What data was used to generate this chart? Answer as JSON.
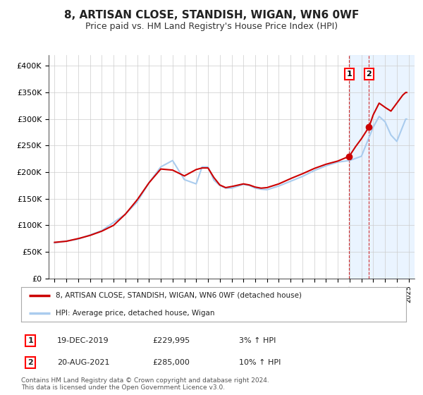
{
  "title": "8, ARTISAN CLOSE, STANDISH, WIGAN, WN6 0WF",
  "subtitle": "Price paid vs. HM Land Registry's House Price Index (HPI)",
  "legend_label_red": "8, ARTISAN CLOSE, STANDISH, WIGAN, WN6 0WF (detached house)",
  "legend_label_blue": "HPI: Average price, detached house, Wigan",
  "footer_line1": "Contains HM Land Registry data © Crown copyright and database right 2024.",
  "footer_line2": "This data is licensed under the Open Government Licence v3.0.",
  "annotation1_label": "1",
  "annotation1_date": "19-DEC-2019",
  "annotation1_price": "£229,995",
  "annotation1_hpi": "3% ↑ HPI",
  "annotation2_label": "2",
  "annotation2_date": "20-AUG-2021",
  "annotation2_price": "£285,000",
  "annotation2_hpi": "10% ↑ HPI",
  "marker1_x": 2019.97,
  "marker1_y": 229995,
  "marker2_x": 2021.64,
  "marker2_y": 285000,
  "vline1_x": 2019.97,
  "vline2_x": 2021.64,
  "shade_start": 2019.97,
  "xlim": [
    1994.5,
    2025.5
  ],
  "ylim": [
    0,
    420000
  ],
  "yticks": [
    0,
    50000,
    100000,
    150000,
    200000,
    250000,
    300000,
    350000,
    400000
  ],
  "ytick_labels": [
    "£0",
    "£50K",
    "£100K",
    "£150K",
    "£200K",
    "£250K",
    "£300K",
    "£350K",
    "£400K"
  ],
  "xticks": [
    1995,
    1996,
    1997,
    1998,
    1999,
    2000,
    2001,
    2002,
    2003,
    2004,
    2005,
    2006,
    2007,
    2008,
    2009,
    2010,
    2011,
    2012,
    2013,
    2014,
    2015,
    2016,
    2017,
    2018,
    2019,
    2020,
    2021,
    2022,
    2023,
    2024,
    2025
  ],
  "red_color": "#cc0000",
  "blue_color": "#aaccee",
  "shade_color": "#ddeeff",
  "grid_color": "#cccccc",
  "background_color": "#ffffff",
  "title_fontsize": 11,
  "subtitle_fontsize": 9
}
